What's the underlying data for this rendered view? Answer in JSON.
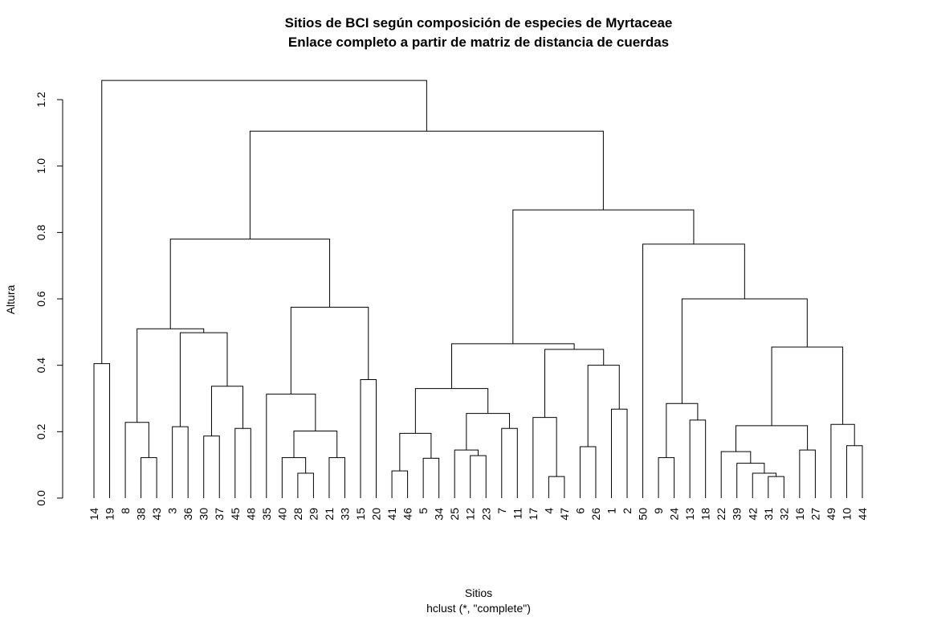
{
  "chart_data": {
    "type": "dendrogram",
    "title": "Sitios de BCI según composición de especies de Myrtaceae",
    "subtitle": "Enlace completo a partir de matriz de distancia de cuerdas",
    "xlabel": "Sitios",
    "sublabel": "hclust (*, \"complete\")",
    "ylabel": "Altura",
    "ylim": [
      0,
      1.3
    ],
    "yticks": [
      0.0,
      0.2,
      0.4,
      0.6,
      0.8,
      1.0,
      1.2
    ],
    "ytick_labels": [
      "0.0",
      "0.2",
      "0.4",
      "0.6",
      "0.8",
      "1.0",
      "1.2"
    ],
    "leaf_order": [
      "14",
      "19",
      "8",
      "38",
      "43",
      "3",
      "36",
      "30",
      "37",
      "45",
      "48",
      "35",
      "40",
      "28",
      "29",
      "21",
      "33",
      "15",
      "20",
      "41",
      "46",
      "5",
      "34",
      "25",
      "12",
      "23",
      "7",
      "11",
      "17",
      "4",
      "47",
      "6",
      "26",
      "1",
      "2",
      "50",
      "9",
      "24",
      "13",
      "18",
      "22",
      "39",
      "42",
      "31",
      "32",
      "16",
      "27",
      "49",
      "10",
      "44"
    ],
    "merges": [
      {
        "a": "31",
        "b": "32",
        "height": 0.065
      },
      {
        "a": "4",
        "b": "47",
        "height": 0.065
      },
      {
        "a": "28",
        "b": "29",
        "height": 0.075
      },
      {
        "a": "42",
        "b": "31+32",
        "height": 0.075
      },
      {
        "a": "41",
        "b": "46",
        "height": 0.082
      },
      {
        "a": "39",
        "b": "42+31+32",
        "height": 0.105
      },
      {
        "a": "5",
        "b": "34",
        "height": 0.12
      },
      {
        "a": "38",
        "b": "43",
        "height": 0.122
      },
      {
        "a": "40",
        "b": "28+29",
        "height": 0.122
      },
      {
        "a": "21",
        "b": "33",
        "height": 0.122
      },
      {
        "a": "9",
        "b": "24",
        "height": 0.122
      },
      {
        "a": "12",
        "b": "23",
        "height": 0.128
      },
      {
        "a": "22",
        "b": "39+42+31+32",
        "height": 0.14
      },
      {
        "a": "25",
        "b": "12+23",
        "height": 0.145
      },
      {
        "a": "16",
        "b": "27",
        "height": 0.145
      },
      {
        "a": "6",
        "b": "26",
        "height": 0.155
      },
      {
        "a": "10",
        "b": "44",
        "height": 0.158
      },
      {
        "a": "30",
        "b": "37",
        "height": 0.187
      },
      {
        "a": "41+46",
        "b": "5+34",
        "height": 0.195
      },
      {
        "a": "40+28+29",
        "b": "21+33",
        "height": 0.202
      },
      {
        "a": "7",
        "b": "11",
        "height": 0.21
      },
      {
        "a": "45",
        "b": "48",
        "height": 0.21
      },
      {
        "a": "3",
        "b": "36",
        "height": 0.215
      },
      {
        "a": "22+39+42+31+32",
        "b": "16+27",
        "height": 0.218
      },
      {
        "a": "49",
        "b": "10+44",
        "height": 0.222
      },
      {
        "a": "8",
        "b": "38+43",
        "height": 0.228
      },
      {
        "a": "13",
        "b": "18",
        "height": 0.235
      },
      {
        "a": "17",
        "b": "4+47",
        "height": 0.243
      },
      {
        "a": "25+12+23",
        "b": "7+11",
        "height": 0.255
      },
      {
        "a": "1",
        "b": "2",
        "height": 0.268
      },
      {
        "a": "9+24",
        "b": "13+18",
        "height": 0.285
      },
      {
        "a": "35",
        "b": "40+28+29+21+33",
        "height": 0.313
      },
      {
        "a": "41+46+5+34",
        "b": "25+12+23+7+11",
        "height": 0.33
      },
      {
        "a": "30+37",
        "b": "45+48",
        "height": 0.337
      },
      {
        "a": "15",
        "b": "20",
        "height": 0.357
      },
      {
        "a": "6+26",
        "b": "1+2",
        "height": 0.4
      },
      {
        "a": "14",
        "b": "19",
        "height": 0.405
      },
      {
        "a": "17+4+47",
        "b": "6+26+1+2",
        "height": 0.448
      },
      {
        "a": "22..27",
        "b": "49+10+44",
        "height": 0.455
      },
      {
        "a": "41..11",
        "b": "17..2",
        "height": 0.465
      },
      {
        "a": "3+36",
        "b": "30+37+45+48",
        "height": 0.498
      },
      {
        "a": "8+38+43",
        "b": "3..48",
        "height": 0.51
      },
      {
        "a": "35..33",
        "b": "15+20",
        "height": 0.575
      },
      {
        "a": "9..18",
        "b": "22..44",
        "height": 0.6
      },
      {
        "a": "50",
        "b": "9..44",
        "height": 0.765
      },
      {
        "a": "8..48",
        "b": "35..20",
        "height": 0.78
      },
      {
        "a": "41..2",
        "b": "50..44",
        "height": 0.868
      },
      {
        "a": "8..20",
        "b": "41..44",
        "height": 1.105
      },
      {
        "a": "14+19",
        "b": "8..44",
        "height": 1.258
      }
    ]
  }
}
